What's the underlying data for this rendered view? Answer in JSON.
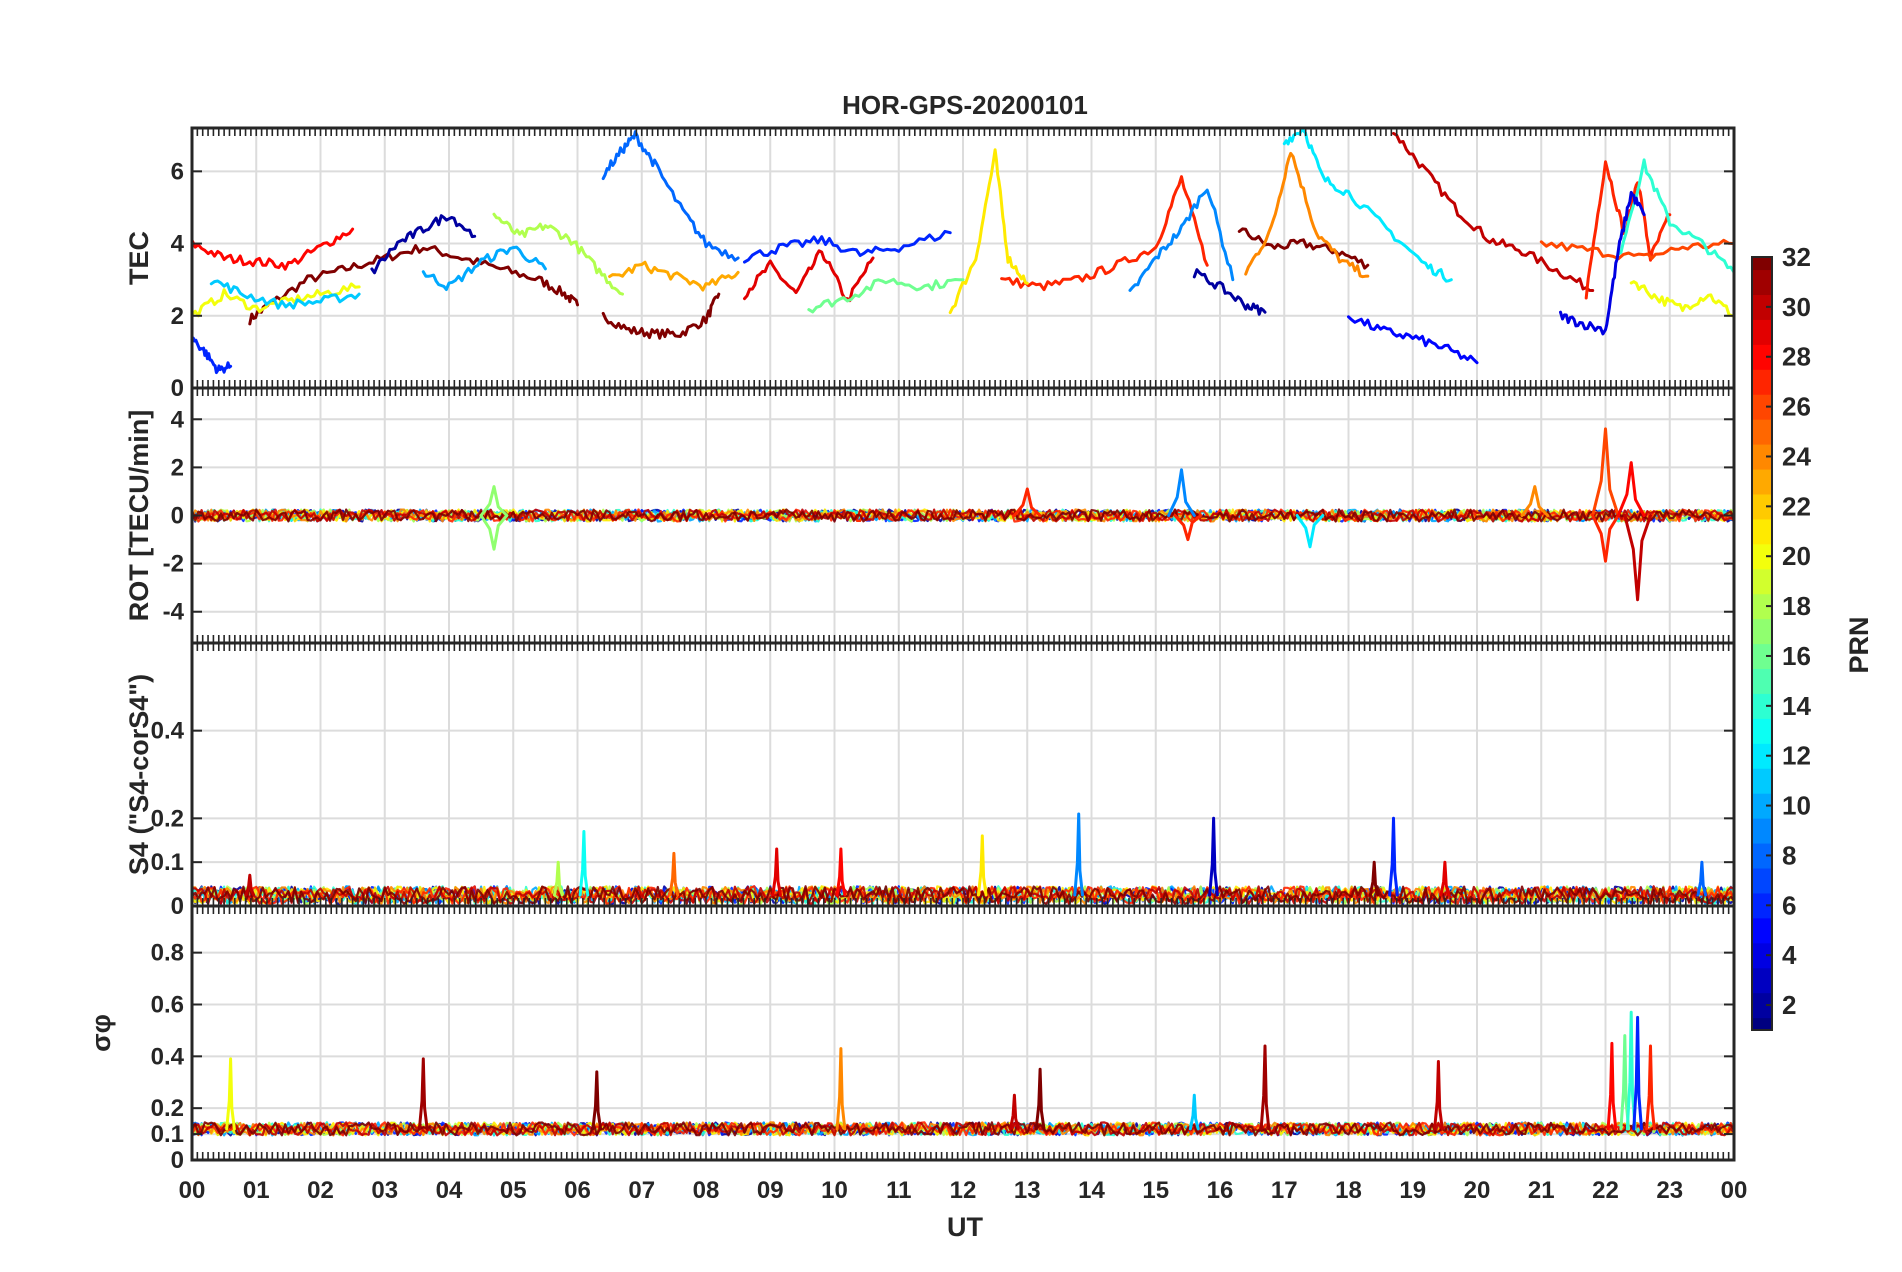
{
  "chart_data": {
    "type": "line",
    "title": "HOR-GPS-20200101",
    "xlabel": "UT",
    "x_unit": "hour",
    "xlim": [
      0,
      24
    ],
    "x_tick_labels": [
      "00",
      "01",
      "02",
      "03",
      "04",
      "05",
      "06",
      "07",
      "08",
      "09",
      "10",
      "11",
      "12",
      "13",
      "14",
      "15",
      "16",
      "17",
      "18",
      "19",
      "20",
      "21",
      "22",
      "23",
      "00"
    ],
    "panels": [
      {
        "id": "tec",
        "ylabel": "TEC",
        "ylim": [
          0,
          7.2
        ],
        "yticks": [
          0,
          2,
          4,
          6
        ],
        "grid": true,
        "series_note": "PRN tracks; approximate values",
        "tracks": [
          {
            "prn": 32,
            "x": [
              0.9,
              1.2,
              1.8,
              2.4,
              3.0,
              3.6,
              4.2,
              4.8,
              5.4,
              5.8,
              6.0
            ],
            "y": [
              1.9,
              2.3,
              3.0,
              3.3,
              3.6,
              3.9,
              3.6,
              3.3,
              3.0,
              2.6,
              2.3
            ]
          },
          {
            "prn": 32,
            "x": [
              6.4,
              6.8,
              7.2,
              7.6,
              8.0,
              8.2
            ],
            "y": [
              2.0,
              1.6,
              1.5,
              1.5,
              1.9,
              2.6
            ]
          },
          {
            "prn": 32,
            "x": [
              16.3,
              16.8,
              17.3,
              17.8,
              18.3
            ],
            "y": [
              4.4,
              3.9,
              4.0,
              3.8,
              3.4
            ]
          },
          {
            "prn": 30,
            "x": [
              18.7,
              19.2,
              19.7,
              20.2,
              20.7,
              21.3,
              21.8
            ],
            "y": [
              7.1,
              6.0,
              4.9,
              4.1,
              3.8,
              3.2,
              2.7
            ]
          },
          {
            "prn": 29,
            "x": [
              8.6,
              9.0,
              9.4,
              9.8,
              10.2,
              10.6
            ],
            "y": [
              2.6,
              3.4,
              2.6,
              3.8,
              2.4,
              3.6
            ]
          },
          {
            "prn": 28,
            "x": [
              0.0,
              0.5,
              1.0,
              1.5,
              2.0,
              2.5
            ],
            "y": [
              4.0,
              3.6,
              3.5,
              3.4,
              3.9,
              4.4
            ]
          },
          {
            "prn": 27,
            "x": [
              12.6,
              13.2,
              13.8,
              14.4,
              15.0,
              15.4,
              15.8
            ],
            "y": [
              3.0,
              2.8,
              3.0,
              3.4,
              3.9,
              5.8,
              3.4
            ]
          },
          {
            "prn": 27,
            "x": [
              21.7,
              22.0,
              22.3,
              22.5,
              22.7,
              23.0
            ],
            "y": [
              2.6,
              6.3,
              4.2,
              5.8,
              3.6,
              4.8
            ]
          },
          {
            "prn": 26,
            "x": [
              21.0,
              21.8,
              22.6,
              23.2,
              24.0
            ],
            "y": [
              4.0,
              3.8,
              3.6,
              3.9,
              4.0
            ]
          },
          {
            "prn": 24,
            "x": [
              16.4,
              16.8,
              17.1,
              17.5,
              17.9,
              18.3
            ],
            "y": [
              3.2,
              4.4,
              6.6,
              4.3,
              3.5,
              3.1
            ]
          },
          {
            "prn": 23,
            "x": [
              6.5,
              7.0,
              7.5,
              8.0,
              8.5
            ],
            "y": [
              3.0,
              3.4,
              3.1,
              2.8,
              3.2
            ]
          },
          {
            "prn": 21,
            "x": [
              11.8,
              12.2,
              12.5,
              12.7,
              13.0
            ],
            "y": [
              2.1,
              3.6,
              6.5,
              3.6,
              2.9
            ]
          },
          {
            "prn": 20,
            "x": [
              0.0,
              0.5,
              1.0,
              1.5,
              2.0,
              2.6
            ],
            "y": [
              2.0,
              2.6,
              2.2,
              2.4,
              2.6,
              2.8
            ]
          },
          {
            "prn": 20,
            "x": [
              22.4,
              22.8,
              23.2,
              23.6,
              24.0
            ],
            "y": [
              3.0,
              2.5,
              2.2,
              2.6,
              2.0
            ]
          },
          {
            "prn": 18,
            "x": [
              4.7,
              5.1,
              5.5,
              5.9,
              6.3,
              6.7
            ],
            "y": [
              4.8,
              4.2,
              4.5,
              4.1,
              3.3,
              2.6
            ]
          },
          {
            "prn": 16,
            "x": [
              9.6,
              10.2,
              10.8,
              11.4,
              12.0
            ],
            "y": [
              2.2,
              2.5,
              3.0,
              2.8,
              3.0
            ]
          },
          {
            "prn": 14,
            "x": [
              22.2,
              22.6,
              23.0,
              23.5,
              24.0
            ],
            "y": [
              3.6,
              6.2,
              4.6,
              4.0,
              3.2
            ]
          },
          {
            "prn": 12,
            "x": [
              17.0,
              17.3,
              17.6,
              18.0,
              18.6,
              19.2,
              19.6
            ],
            "y": [
              6.8,
              7.2,
              5.8,
              5.4,
              4.4,
              3.4,
              3.0
            ]
          },
          {
            "prn": 11,
            "x": [
              0.3,
              0.8,
              1.4,
              2.0,
              2.6
            ],
            "y": [
              3.0,
              2.6,
              2.3,
              2.4,
              2.6
            ]
          },
          {
            "prn": 10,
            "x": [
              3.6,
              4.0,
              4.5,
              5.0,
              5.5
            ],
            "y": [
              3.2,
              2.8,
              3.5,
              3.9,
              3.3
            ]
          },
          {
            "prn": 9,
            "x": [
              14.6,
              15.0,
              15.4,
              15.8,
              16.2
            ],
            "y": [
              2.6,
              3.6,
              4.4,
              5.6,
              3.0
            ]
          },
          {
            "prn": 8,
            "x": [
              6.4,
              6.7,
              6.9,
              7.2,
              7.6,
              8.0,
              8.5
            ],
            "y": [
              5.9,
              6.6,
              7.0,
              6.2,
              5.0,
              4.0,
              3.6
            ]
          },
          {
            "prn": 6,
            "x": [
              8.6,
              9.2,
              9.8,
              10.4,
              11.0,
              11.8
            ],
            "y": [
              3.6,
              3.9,
              4.1,
              3.7,
              3.9,
              4.3
            ]
          },
          {
            "prn": 6,
            "x": [
              0.0,
              0.2,
              0.4,
              0.6
            ],
            "y": [
              1.4,
              1.0,
              0.5,
              0.6
            ]
          },
          {
            "prn": 5,
            "x": [
              18.0,
              18.5,
              19.0,
              19.5,
              20.0
            ],
            "y": [
              2.0,
              1.6,
              1.4,
              1.1,
              0.7
            ]
          },
          {
            "prn": 4,
            "x": [
              21.3,
              21.6,
              22.0,
              22.2,
              22.4,
              22.6
            ],
            "y": [
              2.0,
              1.8,
              1.6,
              3.8,
              5.4,
              4.8
            ]
          },
          {
            "prn": 2,
            "x": [
              2.8,
              3.2,
              3.6,
              4.0,
              4.4
            ],
            "y": [
              3.2,
              4.0,
              4.4,
              4.8,
              4.2
            ]
          },
          {
            "prn": 2,
            "x": [
              15.6,
              16.0,
              16.4,
              16.7
            ],
            "y": [
              3.2,
              2.8,
              2.3,
              2.1
            ]
          }
        ]
      },
      {
        "id": "rot",
        "ylabel": "ROT [TECU/min]",
        "ylim": [
          -5.3,
          5.3
        ],
        "yticks": [
          -4,
          -2,
          0,
          2,
          4
        ],
        "grid": true,
        "series_note": "noise around 0 with bursts",
        "bursts": [
          {
            "x": 4.7,
            "y": 1.2,
            "prn": 17
          },
          {
            "x": 4.7,
            "y": -1.4,
            "prn": 17
          },
          {
            "x": 13.0,
            "y": 1.1,
            "prn": 27
          },
          {
            "x": 15.4,
            "y": 1.9,
            "prn": 9
          },
          {
            "x": 15.5,
            "y": -1.0,
            "prn": 27
          },
          {
            "x": 17.4,
            "y": -1.3,
            "prn": 12
          },
          {
            "x": 20.9,
            "y": 1.2,
            "prn": 24
          },
          {
            "x": 22.0,
            "y": 3.6,
            "prn": 26
          },
          {
            "x": 22.0,
            "y": -1.9,
            "prn": 27
          },
          {
            "x": 22.5,
            "y": -3.5,
            "prn": 30
          },
          {
            "x": 22.4,
            "y": 2.2,
            "prn": 28
          }
        ]
      },
      {
        "id": "s4",
        "ylabel": "S4 (\"S4-corS4\")",
        "ylim": [
          0,
          0.6
        ],
        "yticks": [
          0,
          0.1,
          0.2,
          0.4
        ],
        "grid": true,
        "series_note": "baseline ~0.02-0.04 with spikes",
        "spikes": [
          {
            "x": 0.9,
            "y": 0.07,
            "prn": 30
          },
          {
            "x": 5.7,
            "y": 0.1,
            "prn": 18
          },
          {
            "x": 6.1,
            "y": 0.17,
            "prn": 13
          },
          {
            "x": 7.5,
            "y": 0.12,
            "prn": 25
          },
          {
            "x": 9.1,
            "y": 0.13,
            "prn": 29
          },
          {
            "x": 10.1,
            "y": 0.13,
            "prn": 28
          },
          {
            "x": 12.3,
            "y": 0.16,
            "prn": 21
          },
          {
            "x": 13.8,
            "y": 0.21,
            "prn": 9
          },
          {
            "x": 15.9,
            "y": 0.2,
            "prn": 3
          },
          {
            "x": 18.4,
            "y": 0.1,
            "prn": 32
          },
          {
            "x": 18.7,
            "y": 0.2,
            "prn": 6
          },
          {
            "x": 19.5,
            "y": 0.1,
            "prn": 29
          },
          {
            "x": 23.5,
            "y": 0.1,
            "prn": 8
          }
        ]
      },
      {
        "id": "sigma_phi",
        "ylabel": "σφ",
        "ylim": [
          0,
          0.98
        ],
        "yticks": [
          0,
          0.1,
          0.2,
          0.4,
          0.6,
          0.8
        ],
        "grid": true,
        "series_note": "baseline ~0.12 with spikes",
        "spikes": [
          {
            "x": 0.6,
            "y": 0.39,
            "prn": 20
          },
          {
            "x": 3.6,
            "y": 0.39,
            "prn": 31
          },
          {
            "x": 6.3,
            "y": 0.34,
            "prn": 32
          },
          {
            "x": 10.1,
            "y": 0.43,
            "prn": 24
          },
          {
            "x": 12.8,
            "y": 0.25,
            "prn": 30
          },
          {
            "x": 13.2,
            "y": 0.35,
            "prn": 32
          },
          {
            "x": 15.6,
            "y": 0.25,
            "prn": 11
          },
          {
            "x": 16.7,
            "y": 0.44,
            "prn": 31
          },
          {
            "x": 19.4,
            "y": 0.38,
            "prn": 30
          },
          {
            "x": 22.1,
            "y": 0.45,
            "prn": 28
          },
          {
            "x": 22.3,
            "y": 0.48,
            "prn": 16
          },
          {
            "x": 22.4,
            "y": 0.57,
            "prn": 14
          },
          {
            "x": 22.5,
            "y": 0.55,
            "prn": 6
          },
          {
            "x": 22.7,
            "y": 0.44,
            "prn": 27
          }
        ]
      }
    ],
    "colorbar": {
      "label": "PRN",
      "range": [
        1,
        32
      ],
      "ticks": [
        2,
        4,
        6,
        8,
        10,
        12,
        14,
        16,
        18,
        20,
        22,
        24,
        26,
        28,
        30,
        32
      ],
      "colormap": "jet"
    }
  }
}
